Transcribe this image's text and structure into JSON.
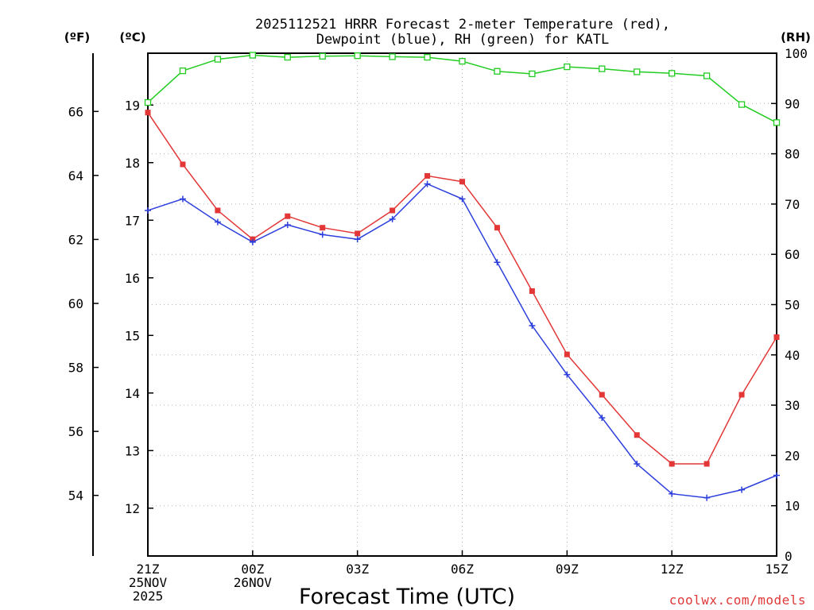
{
  "chart_data": {
    "type": "line",
    "title_line1": "2025112521 HRRR Forecast 2-meter Temperature (red),",
    "title_line2": "Dewpoint (blue), RH (green) for KATL",
    "xlabel": "Forecast Time (UTC)",
    "credit": "coolwx.com/models",
    "units": {
      "fahrenheit": "(ºF)",
      "celsius": "(ºC)",
      "rh": "(RH)"
    },
    "hours": [
      0,
      1,
      2,
      3,
      4,
      5,
      6,
      7,
      8,
      9,
      10,
      11,
      12,
      13,
      14,
      15,
      16,
      17,
      18
    ],
    "x_ticks": [
      {
        "hour": 0,
        "lines": [
          "21Z",
          "25NOV",
          "2025"
        ]
      },
      {
        "hour": 3,
        "lines": [
          "00Z",
          "26NOV"
        ]
      },
      {
        "hour": 6,
        "lines": [
          "03Z"
        ]
      },
      {
        "hour": 9,
        "lines": [
          "06Z"
        ]
      },
      {
        "hour": 12,
        "lines": [
          "09Z"
        ]
      },
      {
        "hour": 15,
        "lines": [
          "12Z"
        ]
      },
      {
        "hour": 18,
        "lines": [
          "15Z"
        ]
      }
    ],
    "ylim_celsius": [
      11.17,
      19.9
    ],
    "ylim_rh": [
      0,
      100
    ],
    "celsius_ticks": [
      "12",
      "13",
      "14",
      "15",
      "16",
      "17",
      "18",
      "19"
    ],
    "fahrenheit_ticks": [
      "54",
      "56",
      "58",
      "60",
      "62",
      "64",
      "66"
    ],
    "rh_ticks": [
      "0",
      "10",
      "20",
      "30",
      "40",
      "50",
      "60",
      "70",
      "80",
      "90",
      "100"
    ],
    "series": [
      {
        "name": "Temperature",
        "units": "C",
        "color": "#e33636",
        "marker": "filled-square",
        "values": [
          18.87,
          17.97,
          17.17,
          16.67,
          17.07,
          16.87,
          16.77,
          17.17,
          17.77,
          17.67,
          16.87,
          15.77,
          14.67,
          13.97,
          13.27,
          12.77,
          12.77,
          13.97,
          14.97
        ]
      },
      {
        "name": "Dewpoint",
        "units": "C",
        "color": "#2c3fdc",
        "marker": "plus",
        "values": [
          17.17,
          17.37,
          16.97,
          16.62,
          16.92,
          16.75,
          16.67,
          17.02,
          17.63,
          17.37,
          16.27,
          15.17,
          14.32,
          13.57,
          12.77,
          12.25,
          12.18,
          12.32,
          12.57
        ]
      },
      {
        "name": "RH",
        "units": "%",
        "color": "#22cc22",
        "marker": "open-square",
        "values": [
          90.2,
          96.5,
          98.8,
          99.6,
          99.2,
          99.4,
          99.5,
          99.3,
          99.2,
          98.4,
          96.4,
          95.9,
          97.3,
          96.9,
          96.3,
          96.0,
          95.5,
          89.8,
          86.2
        ]
      }
    ]
  }
}
